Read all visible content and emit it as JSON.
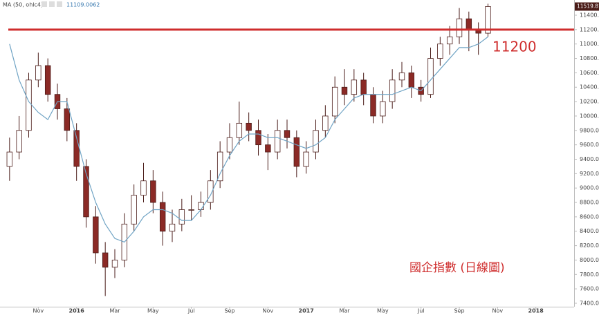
{
  "chart_data": {
    "type": "candlestick",
    "header": {
      "name": "MA (50, ohlc4)",
      "value": 11109.0062
    },
    "x": [
      0.5,
      1,
      1.5,
      2,
      2.5,
      3,
      3.5,
      4,
      4.5,
      5,
      5.5,
      6,
      6.5,
      7,
      7.5,
      8,
      8.5,
      9,
      9.5,
      10,
      10.5,
      11,
      11.5,
      12,
      12.5,
      13,
      13.5,
      14,
      14.5,
      15,
      15.5,
      16,
      16.5,
      17,
      17.5,
      18,
      18.5,
      19,
      19.5,
      20,
      20.5,
      21,
      21.5,
      22,
      22.5,
      23,
      23.5,
      24,
      24.5,
      25,
      25.5
    ],
    "open": [
      9300,
      9500,
      9800,
      10500,
      10700,
      10300,
      10100,
      9800,
      9300,
      8600,
      8100,
      7900,
      8000,
      8500,
      8900,
      9100,
      8800,
      8400,
      8500,
      8700,
      8700,
      8800,
      9100,
      9500,
      9700,
      9900,
      9800,
      9600,
      9500,
      9800,
      9700,
      9300,
      9500,
      9800,
      10000,
      10400,
      10300,
      10500,
      10300,
      10000,
      10200,
      10500,
      10600,
      10400,
      10300,
      10800,
      11000,
      11100,
      11350,
      11200,
      11150
    ],
    "high": [
      9700,
      10000,
      10600,
      10880,
      10800,
      10450,
      10250,
      9900,
      9400,
      8750,
      8250,
      8150,
      8650,
      9050,
      9350,
      9250,
      8950,
      8700,
      8850,
      8900,
      8950,
      9250,
      9650,
      9900,
      10200,
      10050,
      9950,
      9750,
      9950,
      9950,
      9800,
      9650,
      9950,
      10150,
      10550,
      10650,
      10650,
      10600,
      10400,
      10350,
      10650,
      10750,
      10700,
      10500,
      10950,
      11100,
      11250,
      11500,
      11450,
      11300,
      11560
    ],
    "low": [
      9100,
      9400,
      9700,
      10400,
      10200,
      9950,
      9650,
      9100,
      8450,
      7950,
      7500,
      7750,
      7900,
      8400,
      8800,
      8650,
      8200,
      8250,
      8400,
      8550,
      8600,
      8700,
      9000,
      9400,
      9600,
      9650,
      9450,
      9250,
      9400,
      9550,
      9150,
      9200,
      9400,
      9700,
      9900,
      10150,
      10200,
      10150,
      9900,
      9900,
      10100,
      10400,
      10250,
      10200,
      10250,
      10700,
      10850,
      11000,
      10900,
      10850,
      11100
    ],
    "close": [
      9500,
      9800,
      10500,
      10700,
      10300,
      10100,
      9800,
      9300,
      8600,
      8100,
      7900,
      8000,
      8500,
      8900,
      9100,
      8800,
      8400,
      8500,
      8700,
      8700,
      8800,
      9100,
      9500,
      9700,
      9900,
      9800,
      9600,
      9500,
      9800,
      9700,
      9300,
      9500,
      9800,
      10000,
      10400,
      10300,
      10500,
      10300,
      10000,
      10200,
      10500,
      10600,
      10400,
      10300,
      10800,
      11000,
      11100,
      11350,
      11200,
      11150,
      11520
    ],
    "up_color": "#ffffff",
    "down_color": "#8b2a26",
    "edge_color": "#4a1b18",
    "ma": {
      "color": "#6fa3c4",
      "values": [
        11000,
        10500,
        10200,
        10050,
        9950,
        10200,
        10200,
        9700,
        9200,
        8800,
        8500,
        8300,
        8250,
        8400,
        8600,
        8700,
        8700,
        8650,
        8550,
        8550,
        8700,
        8900,
        9200,
        9450,
        9650,
        9750,
        9750,
        9700,
        9700,
        9650,
        9600,
        9550,
        9600,
        9700,
        9950,
        10100,
        10250,
        10300,
        10300,
        10300,
        10300,
        10350,
        10400,
        10350,
        10500,
        10650,
        10800,
        10950,
        10950,
        11000,
        11100
      ]
    },
    "reference_line": {
      "value": 11200,
      "label": "11200",
      "color": "#cf2d2d"
    },
    "annotation": "國企指數 (日線圖)",
    "last_price": 11519.81,
    "xlim": [
      0,
      30
    ],
    "xticks": [
      {
        "value": 2,
        "label": "Nov"
      },
      {
        "value": 4,
        "label": "2016"
      },
      {
        "value": 6,
        "label": "Mar"
      },
      {
        "value": 8,
        "label": "May"
      },
      {
        "value": 10,
        "label": "Jul"
      },
      {
        "value": 12,
        "label": "Sep"
      },
      {
        "value": 14,
        "label": "Nov"
      },
      {
        "value": 16,
        "label": "2017"
      },
      {
        "value": 18,
        "label": "Mar"
      },
      {
        "value": 20,
        "label": "May"
      },
      {
        "value": 22,
        "label": "Jul"
      },
      {
        "value": 24,
        "label": "Sep"
      },
      {
        "value": 26,
        "label": "Nov"
      },
      {
        "value": 28,
        "label": "2018"
      }
    ],
    "ylim": [
      7352,
      11611
    ],
    "yticks": [
      {
        "value": 7400,
        "label": "7400.00"
      },
      {
        "value": 7600,
        "label": "7600.00"
      },
      {
        "value": 7800,
        "label": "7800.00"
      },
      {
        "value": 8000,
        "label": "8000.00"
      },
      {
        "value": 8200,
        "label": "8200.00"
      },
      {
        "value": 8400,
        "label": "8400.00"
      },
      {
        "value": 8600,
        "label": "8600.00"
      },
      {
        "value": 8800,
        "label": "8800.00"
      },
      {
        "value": 9000,
        "label": "9000.00"
      },
      {
        "value": 9200,
        "label": "9200.00"
      },
      {
        "value": 9400,
        "label": "9400.00"
      },
      {
        "value": 9600,
        "label": "9600.00"
      },
      {
        "value": 9800,
        "label": "9800.00"
      },
      {
        "value": 10000,
        "label": "10000.00"
      },
      {
        "value": 10200,
        "label": "10200.00"
      },
      {
        "value": 10400,
        "label": "10400.00"
      },
      {
        "value": 10600,
        "label": "10600.00"
      },
      {
        "value": 10800,
        "label": "10800.00"
      },
      {
        "value": 11000,
        "label": "11000.00"
      },
      {
        "value": 11200,
        "label": "11200.00"
      },
      {
        "value": 11400,
        "label": "11400.00"
      }
    ]
  }
}
